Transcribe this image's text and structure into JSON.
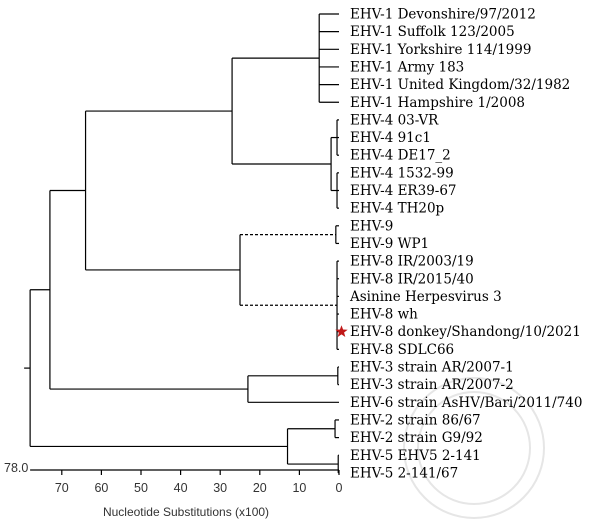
{
  "figure": {
    "axis_title": "Nucleotide Substitutions (x100)",
    "scale_top_label": "78.0",
    "axis_ticks": [
      "70",
      "60",
      "50",
      "40",
      "30",
      "20",
      "10",
      "0"
    ],
    "axis_tick_values": [
      70,
      60,
      50,
      40,
      30,
      20,
      10,
      0
    ],
    "axis_range": [
      78,
      0
    ],
    "highlight_color": "#c01818",
    "highlight_marker_icon": "star-icon"
  },
  "taxa": [
    {
      "id": "t1",
      "label": "EHV-1 Devonshire/97/2012"
    },
    {
      "id": "t2",
      "label": "EHV-1 Suffolk 123/2005"
    },
    {
      "id": "t3",
      "label": "EHV-1 Yorkshire 114/1999"
    },
    {
      "id": "t4",
      "label": "EHV-1 Army 183"
    },
    {
      "id": "t5",
      "label": "EHV-1 United Kingdom/32/1982"
    },
    {
      "id": "t6",
      "label": "EHV-1 Hampshire 1/2008"
    },
    {
      "id": "t7",
      "label": "EHV-4 03-VR"
    },
    {
      "id": "t8",
      "label": "EHV-4 91c1"
    },
    {
      "id": "t9",
      "label": "EHV-4 DE17_2"
    },
    {
      "id": "t10",
      "label": "EHV-4 1532-99"
    },
    {
      "id": "t11",
      "label": "EHV-4 ER39-67"
    },
    {
      "id": "t12",
      "label": "EHV-4 TH20p"
    },
    {
      "id": "t13",
      "label": "EHV-9"
    },
    {
      "id": "t14",
      "label": "EHV-9 WP1"
    },
    {
      "id": "t15",
      "label": "EHV-8 IR/2003/19"
    },
    {
      "id": "t16",
      "label": "EHV-8 IR/2015/40"
    },
    {
      "id": "t17",
      "label": "Asinine Herpesvirus 3"
    },
    {
      "id": "t18",
      "label": "EHV-8 wh"
    },
    {
      "id": "t19",
      "label": "EHV-8 donkey/Shandong/10/2021",
      "highlighted": true
    },
    {
      "id": "t20",
      "label": "EHV-8 SDLC66"
    },
    {
      "id": "t21",
      "label": "EHV-3 strain AR/2007-1"
    },
    {
      "id": "t22",
      "label": "EHV-3 strain AR/2007-2"
    },
    {
      "id": "t23",
      "label": "EHV-6 strain AsHV/Bari/2011/740"
    },
    {
      "id": "t24",
      "label": "EHV-2 strain 86/67"
    },
    {
      "id": "t25",
      "label": "EHV-2 strain G9/92"
    },
    {
      "id": "t26",
      "label": "EHV-5 EHV5 2-141"
    },
    {
      "id": "t27",
      "label": "EHV-5 2-141/67"
    }
  ],
  "tree": {
    "id": "root",
    "height": 78.0,
    "children": [
      {
        "id": "n_big",
        "height": 73.0,
        "children": [
          {
            "id": "n_169",
            "height": 64.0,
            "children": [
              {
                "id": "n_ehv1_4",
                "height": 27.0,
                "children": [
                  {
                    "id": "n_ehv1",
                    "height": 5.0,
                    "children": [
                      {
                        "taxon": "t1"
                      },
                      {
                        "taxon": "t2"
                      },
                      {
                        "taxon": "t3"
                      },
                      {
                        "taxon": "t4"
                      },
                      {
                        "taxon": "t5"
                      },
                      {
                        "taxon": "t6"
                      }
                    ]
                  },
                  {
                    "id": "n_ehv4",
                    "height": 2.0,
                    "children": [
                      {
                        "id": "n_ehv4a",
                        "height": 0.5,
                        "children": [
                          {
                            "taxon": "t7"
                          },
                          {
                            "taxon": "t8"
                          },
                          {
                            "taxon": "t9"
                          }
                        ]
                      },
                      {
                        "id": "n_ehv4b",
                        "height": 0.5,
                        "children": [
                          {
                            "taxon": "t10"
                          },
                          {
                            "taxon": "t11"
                          },
                          {
                            "taxon": "t12"
                          }
                        ]
                      }
                    ]
                  }
                ]
              },
              {
                "id": "n_ehv9_8",
                "height": 25.0,
                "children": [
                  {
                    "id": "n_ehv9",
                    "height": 0.8,
                    "dashed": true,
                    "children": [
                      {
                        "taxon": "t13"
                      },
                      {
                        "taxon": "t14"
                      }
                    ]
                  },
                  {
                    "id": "n_ehv8",
                    "height": 0.5,
                    "dashed": true,
                    "children": [
                      {
                        "taxon": "t15"
                      },
                      {
                        "taxon": "t16"
                      },
                      {
                        "taxon": "t17"
                      },
                      {
                        "taxon": "t18"
                      },
                      {
                        "taxon": "t19"
                      },
                      {
                        "taxon": "t20"
                      }
                    ]
                  }
                ]
              }
            ]
          },
          {
            "id": "n_ehv3_6",
            "height": 23.0,
            "children": [
              {
                "id": "n_ehv3",
                "height": 0.3,
                "children": [
                  {
                    "taxon": "t21"
                  },
                  {
                    "taxon": "t22"
                  }
                ]
              },
              {
                "taxon": "t23"
              }
            ]
          }
        ]
      },
      {
        "id": "n_gamma",
        "height": 13.0,
        "children": [
          {
            "id": "n_ehv2",
            "height": 1.0,
            "children": [
              {
                "taxon": "t24"
              },
              {
                "taxon": "t25"
              }
            ]
          },
          {
            "id": "n_ehv5",
            "height": 0.2,
            "children": [
              {
                "taxon": "t26"
              },
              {
                "taxon": "t27"
              }
            ]
          }
        ]
      }
    ]
  }
}
